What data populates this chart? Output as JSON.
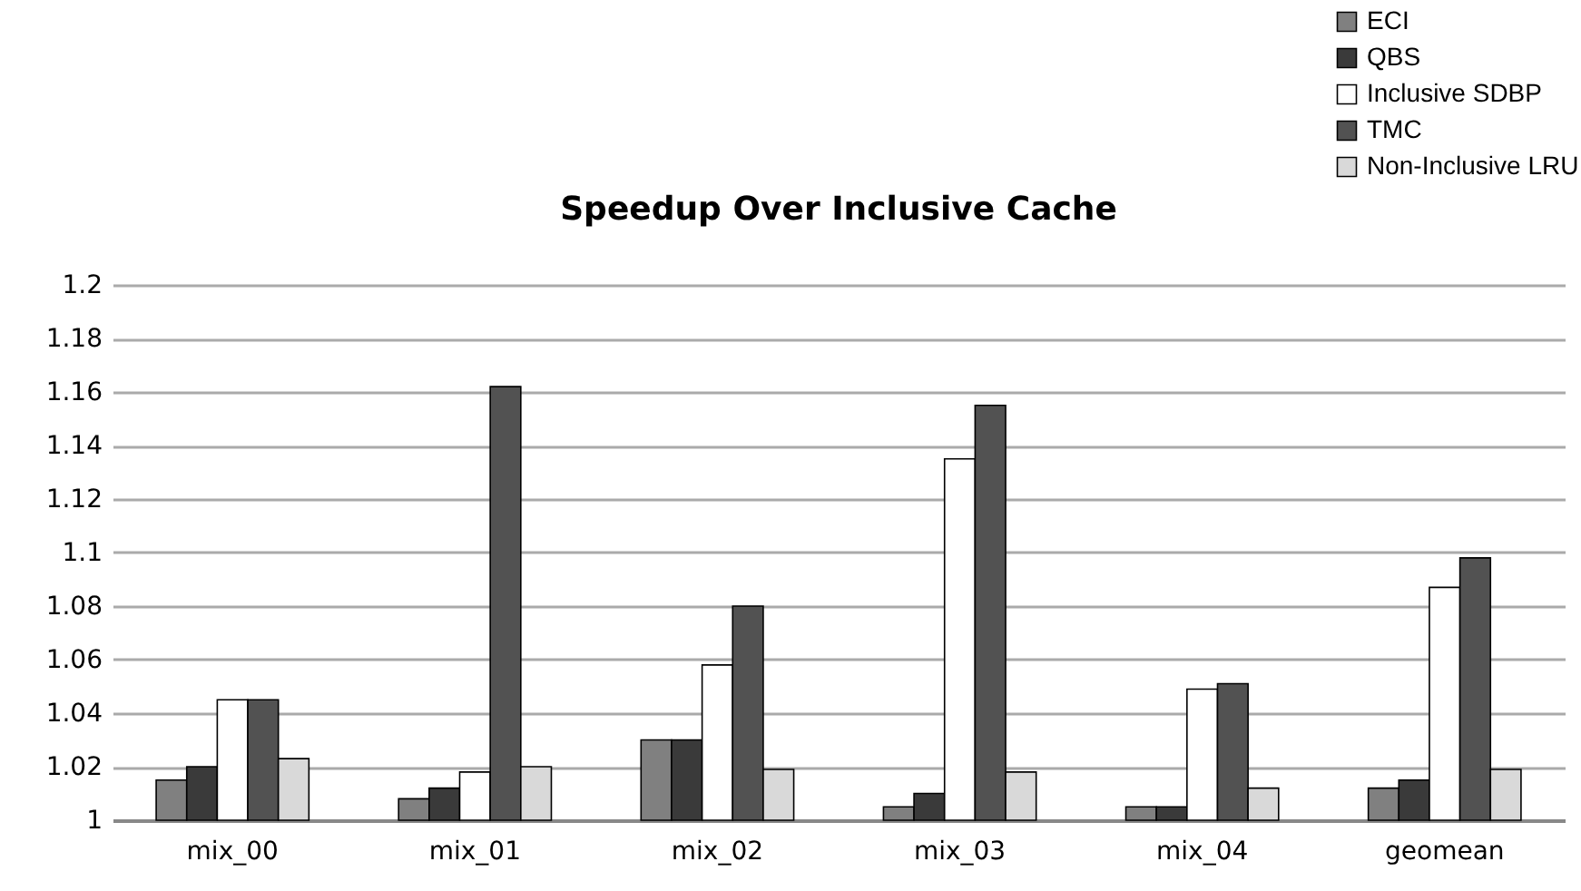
{
  "chart_data": {
    "type": "bar",
    "title": "Speedup Over Inclusive Cache",
    "categories": [
      "mix_00",
      "mix_01",
      "mix_02",
      "mix_03",
      "mix_04",
      "geomean"
    ],
    "series": [
      {
        "name": "ECI",
        "color": "#808080",
        "values": [
          1.015,
          1.008,
          1.03,
          1.005,
          1.005,
          1.012
        ]
      },
      {
        "name": "QBS",
        "color": "#3a3a3a",
        "values": [
          1.02,
          1.012,
          1.03,
          1.01,
          1.005,
          1.015
        ]
      },
      {
        "name": "Inclusive SDBP",
        "color": "#ffffff",
        "values": [
          1.045,
          1.018,
          1.058,
          1.135,
          1.049,
          1.087
        ]
      },
      {
        "name": "TMC",
        "color": "#525252",
        "values": [
          1.045,
          1.162,
          1.08,
          1.155,
          1.051,
          1.098
        ]
      },
      {
        "name": "Non-Inclusive LRU",
        "color": "#d9d9d9",
        "values": [
          1.023,
          1.02,
          1.019,
          1.018,
          1.012,
          1.019
        ]
      }
    ],
    "ylim": [
      1,
      1.2
    ],
    "yticks": [
      1,
      1.02,
      1.04,
      1.06,
      1.08,
      1.1,
      1.12,
      1.14,
      1.16,
      1.18,
      1.2
    ],
    "grid": "y",
    "legend": "top right"
  }
}
